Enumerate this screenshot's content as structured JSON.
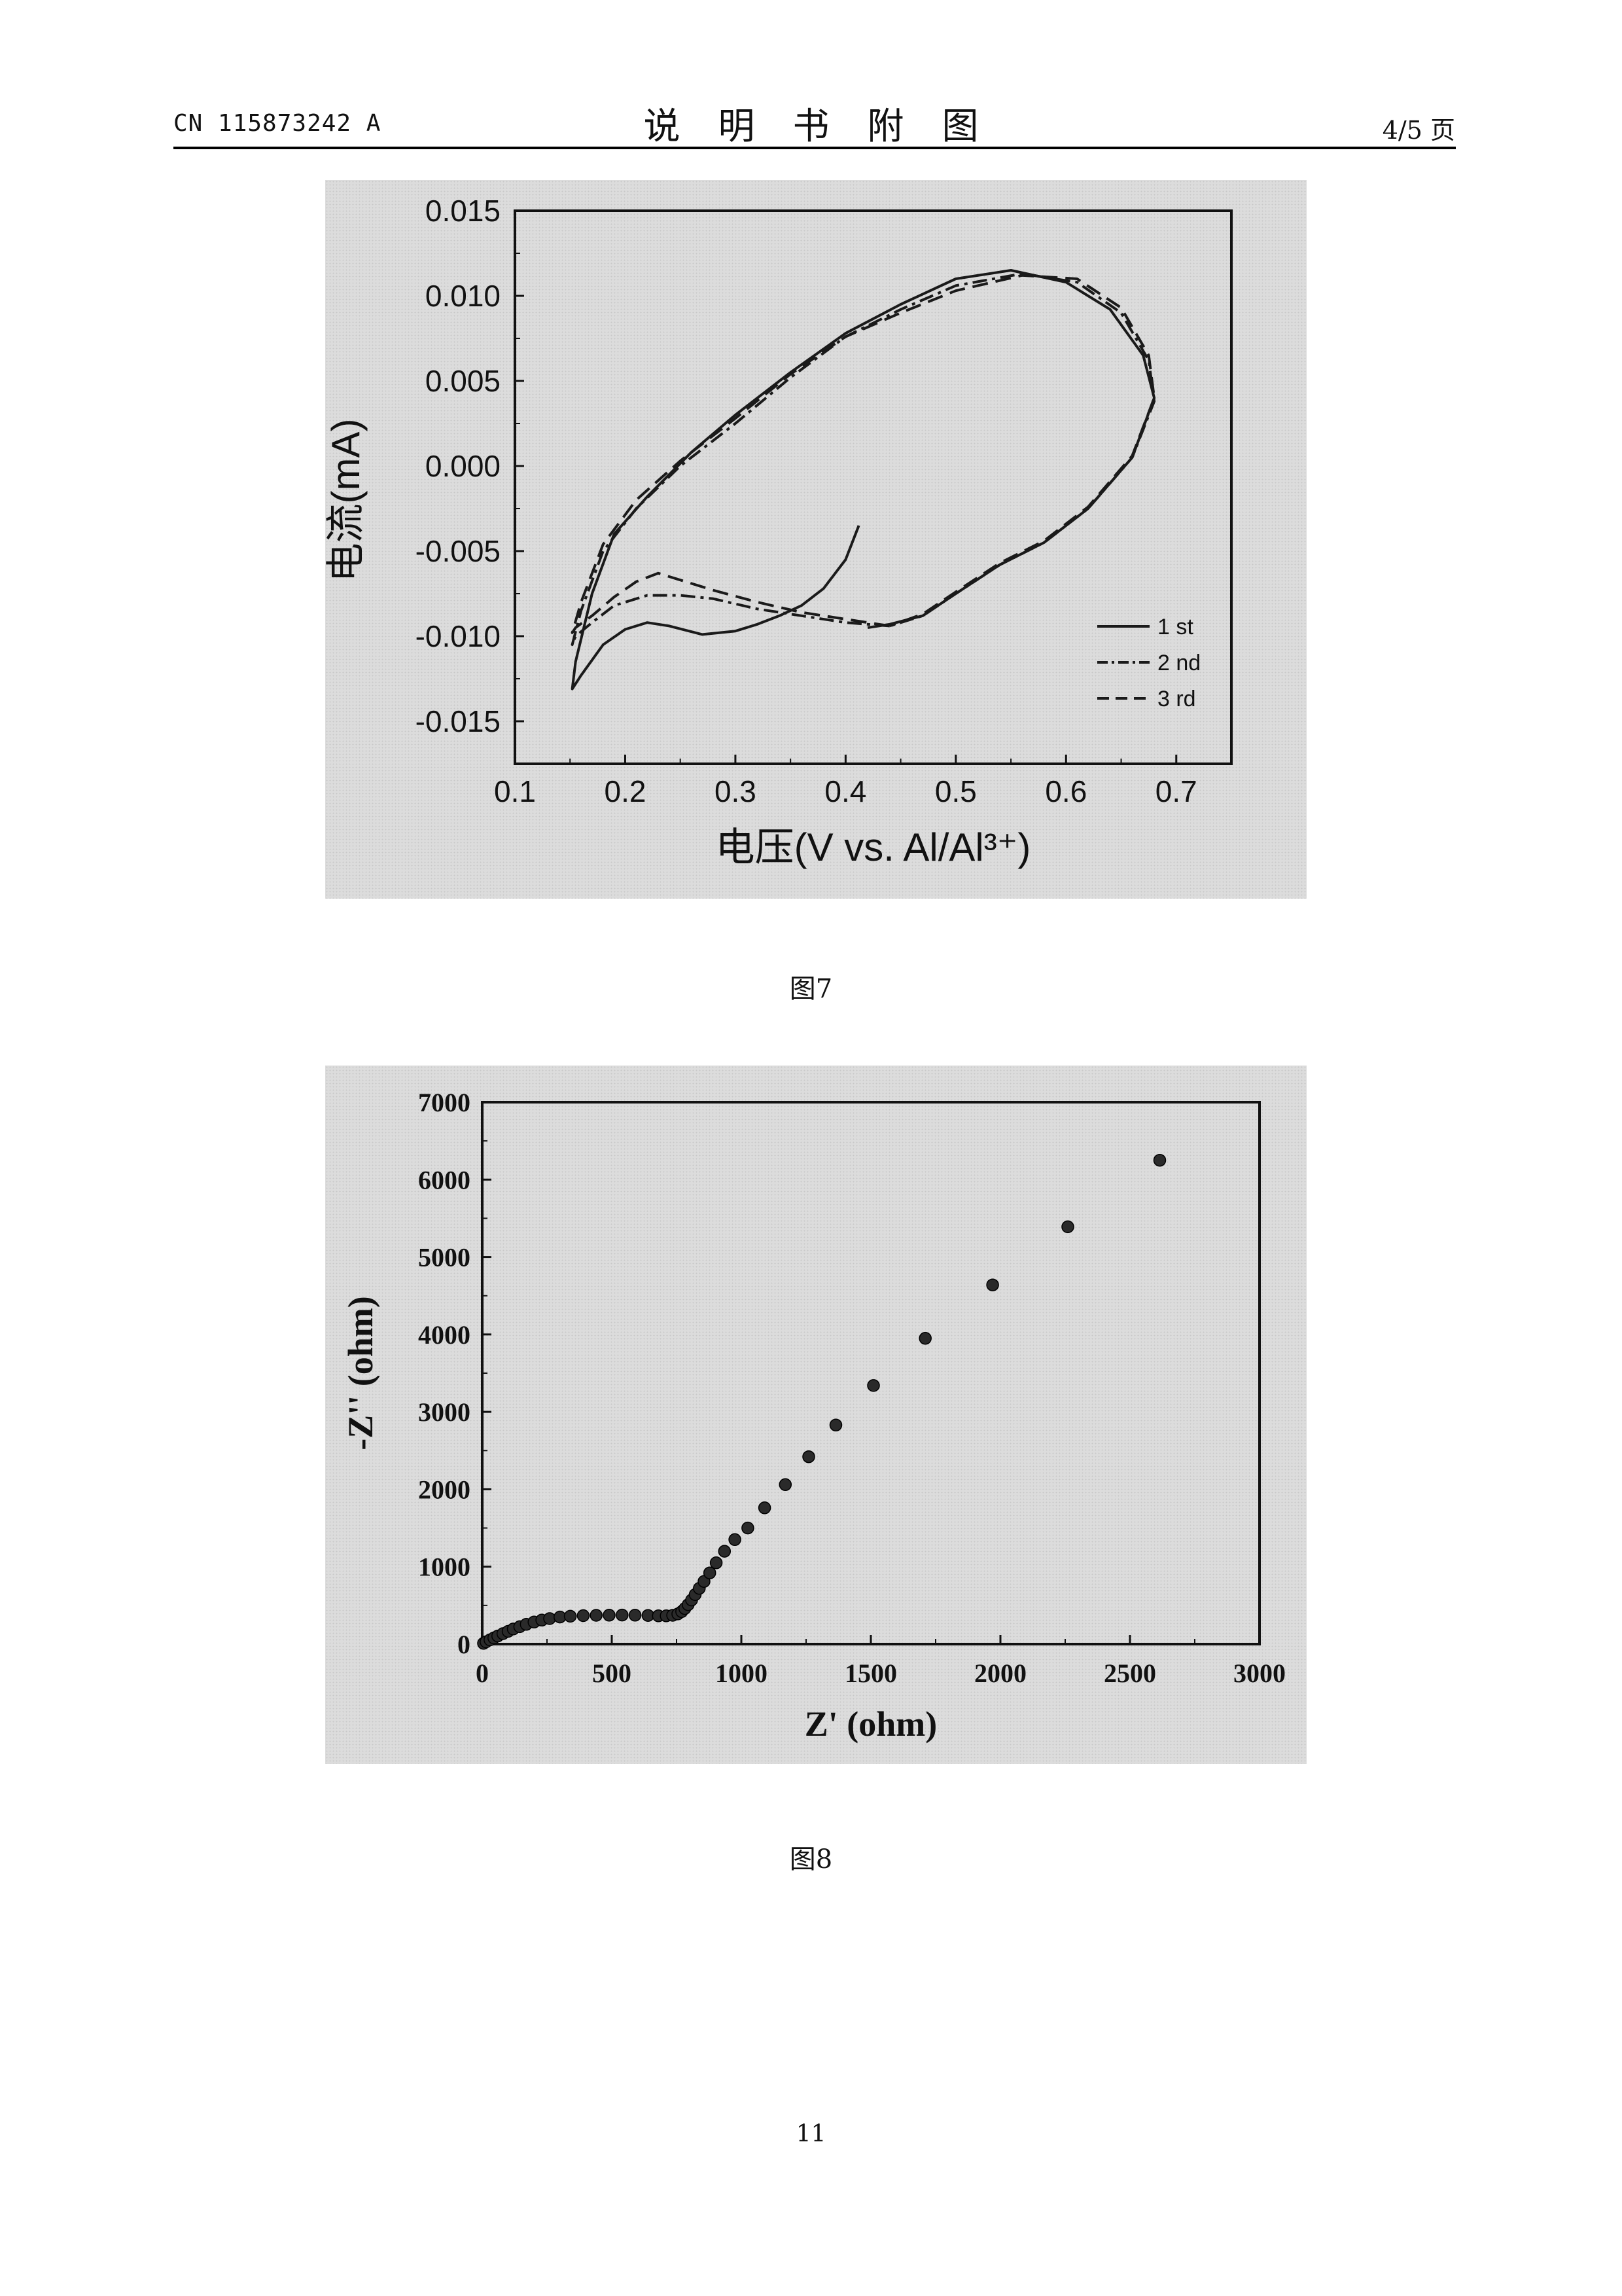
{
  "header": {
    "patent_number": "CN 115873242 A",
    "section_title": "说明书附图",
    "page_count": "4/5 页"
  },
  "figures": [
    {
      "caption": "图7",
      "chart_data": {
        "type": "line",
        "xlabel": "电压(V vs. Al/Al³⁺)",
        "ylabel": "电流(mA)",
        "xlim": [
          0.1,
          0.75
        ],
        "ylim": [
          -0.0175,
          0.015
        ],
        "x_ticks": [
          "0.1",
          "0.2",
          "0.3",
          "0.4",
          "0.5",
          "0.6",
          "0.7"
        ],
        "y_ticks": [
          "0.015",
          "0.010",
          "0.005",
          "0.000",
          "-0.005",
          "-0.010",
          "-0.015"
        ],
        "legend_position": "bottom-right",
        "grid": false,
        "series": [
          {
            "name": "1 st",
            "style": "solid",
            "x": [
              0.412,
              0.4,
              0.38,
              0.36,
              0.34,
              0.32,
              0.3,
              0.27,
              0.24,
              0.22,
              0.2,
              0.18,
              0.16,
              0.152,
              0.155,
              0.17,
              0.19,
              0.22,
              0.26,
              0.3,
              0.35,
              0.4,
              0.45,
              0.5,
              0.55,
              0.6,
              0.64,
              0.67,
              0.68,
              0.66,
              0.62,
              0.58,
              0.54,
              0.5,
              0.47,
              0.44,
              0.42
            ],
            "y": [
              -0.0035,
              -0.0055,
              -0.0072,
              -0.0082,
              -0.0088,
              -0.0093,
              -0.0097,
              -0.0099,
              -0.0094,
              -0.0092,
              -0.0096,
              -0.0105,
              -0.0123,
              -0.0131,
              -0.0115,
              -0.0075,
              -0.004,
              -0.0018,
              0.0008,
              0.003,
              0.0055,
              0.0078,
              0.0095,
              0.011,
              0.0115,
              0.0108,
              0.0092,
              0.0065,
              0.004,
              0.0005,
              -0.0025,
              -0.0045,
              -0.0058,
              -0.0075,
              -0.0088,
              -0.0093,
              -0.0095
            ]
          },
          {
            "name": "2 nd",
            "style": "dash-dot",
            "x": [
              0.44,
              0.4,
              0.36,
              0.32,
              0.28,
              0.25,
              0.22,
              0.19,
              0.17,
              0.155,
              0.152,
              0.16,
              0.18,
              0.21,
              0.25,
              0.3,
              0.35,
              0.4,
              0.45,
              0.5,
              0.56,
              0.61,
              0.65,
              0.675,
              0.68,
              0.66,
              0.62,
              0.58,
              0.54,
              0.5,
              0.47,
              0.44
            ],
            "y": [
              -0.0094,
              -0.0092,
              -0.0088,
              -0.0084,
              -0.0078,
              -0.0076,
              -0.0076,
              -0.0082,
              -0.0092,
              -0.01,
              -0.0105,
              -0.0085,
              -0.005,
              -0.0025,
              0.0,
              0.0025,
              0.0052,
              0.0076,
              0.0092,
              0.0106,
              0.0113,
              0.0108,
              0.009,
              0.0062,
              0.0038,
              0.0005,
              -0.0025,
              -0.0045,
              -0.0058,
              -0.0075,
              -0.0088,
              -0.0094
            ]
          },
          {
            "name": "3 rd",
            "style": "dashed",
            "x": [
              0.44,
              0.4,
              0.36,
              0.32,
              0.28,
              0.25,
              0.23,
              0.21,
              0.19,
              0.17,
              0.155,
              0.152,
              0.16,
              0.18,
              0.21,
              0.25,
              0.3,
              0.35,
              0.4,
              0.45,
              0.5,
              0.56,
              0.61,
              0.65,
              0.675,
              0.68,
              0.66,
              0.62,
              0.58,
              0.54,
              0.5,
              0.47,
              0.44
            ],
            "y": [
              -0.0094,
              -0.009,
              -0.0086,
              -0.008,
              -0.0073,
              -0.0067,
              -0.0063,
              -0.0068,
              -0.0077,
              -0.0088,
              -0.0095,
              -0.0098,
              -0.008,
              -0.0046,
              -0.002,
              0.0003,
              0.0028,
              0.0054,
              0.0076,
              0.009,
              0.0103,
              0.0112,
              0.011,
              0.0093,
              0.0065,
              0.004,
              0.0006,
              -0.0024,
              -0.0044,
              -0.0057,
              -0.0074,
              -0.0087,
              -0.0094
            ]
          }
        ]
      }
    },
    {
      "caption": "图8",
      "chart_data": {
        "type": "scatter",
        "xlabel": "Z' (ohm)",
        "ylabel": "-Z'' (ohm)",
        "xlim": [
          0,
          3000
        ],
        "ylim": [
          0,
          7000
        ],
        "x_ticks": [
          "0",
          "500",
          "1000",
          "1500",
          "2000",
          "2500",
          "3000"
        ],
        "y_ticks": [
          "0",
          "1000",
          "2000",
          "3000",
          "4000",
          "5000",
          "6000",
          "7000"
        ],
        "grid": false,
        "series": [
          {
            "x": [
              5,
              15,
              30,
              45,
              60,
              80,
              100,
              120,
              145,
              170,
              200,
              230,
              260,
              300,
              340,
              390,
              440,
              490,
              540,
              590,
              640,
              680,
              710,
              735,
              755,
              770,
              782,
              795,
              808,
              822,
              838,
              856,
              878,
              903,
              935,
              975,
              1025,
              1090,
              1170,
              1260,
              1365,
              1510,
              1710,
              1970,
              2260,
              2615
            ],
            "y": [
              10,
              30,
              55,
              80,
              105,
              135,
              165,
              195,
              225,
              255,
              285,
              310,
              330,
              350,
              360,
              368,
              372,
              374,
              375,
              374,
              370,
              365,
              365,
              372,
              390,
              420,
              460,
              510,
              570,
              640,
              720,
              810,
              920,
              1050,
              1200,
              1350,
              1500,
              1760,
              2060,
              2420,
              2830,
              3340,
              3950,
              4640,
              5390,
              6250
            ]
          }
        ]
      }
    }
  ],
  "page_number": "11"
}
